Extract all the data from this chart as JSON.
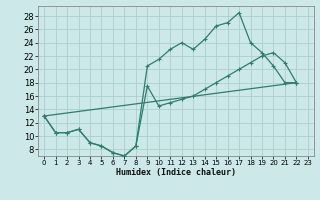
{
  "bg_color": "#cce8e8",
  "grid_color": "#aacfcf",
  "line_color": "#2e7d6e",
  "xlabel": "Humidex (Indice chaleur)",
  "xlim": [
    -0.5,
    23.5
  ],
  "ylim": [
    7,
    29.5
  ],
  "xticks": [
    0,
    1,
    2,
    3,
    4,
    5,
    6,
    7,
    8,
    9,
    10,
    11,
    12,
    13,
    14,
    15,
    16,
    17,
    18,
    19,
    20,
    21,
    22,
    23
  ],
  "yticks": [
    8,
    10,
    12,
    14,
    16,
    18,
    20,
    22,
    24,
    26,
    28
  ],
  "line1_x": [
    0,
    1,
    2,
    3,
    4,
    5,
    6,
    7,
    8,
    9,
    10,
    11,
    12,
    13,
    14,
    15,
    16,
    17,
    18,
    19,
    20,
    21,
    22
  ],
  "line1_y": [
    13,
    10.5,
    10.5,
    11,
    9,
    8.5,
    7.5,
    7,
    8.5,
    20.5,
    21.5,
    23,
    24,
    23,
    24.5,
    26.5,
    27,
    28.5,
    24,
    22.5,
    20.5,
    18,
    18
  ],
  "line2_x": [
    0,
    22
  ],
  "line2_y": [
    13,
    18
  ],
  "line3_x": [
    0,
    1,
    2,
    3,
    4,
    5,
    6,
    7,
    8,
    9,
    10,
    11,
    12,
    13,
    14,
    15,
    16,
    17,
    18,
    19,
    20,
    21,
    22
  ],
  "line3_y": [
    13,
    10.5,
    10.5,
    11,
    9,
    8.5,
    7.5,
    7,
    8.5,
    17.5,
    14.5,
    15,
    15.5,
    16,
    17,
    18,
    19,
    20,
    21,
    22,
    22.5,
    21,
    18
  ]
}
